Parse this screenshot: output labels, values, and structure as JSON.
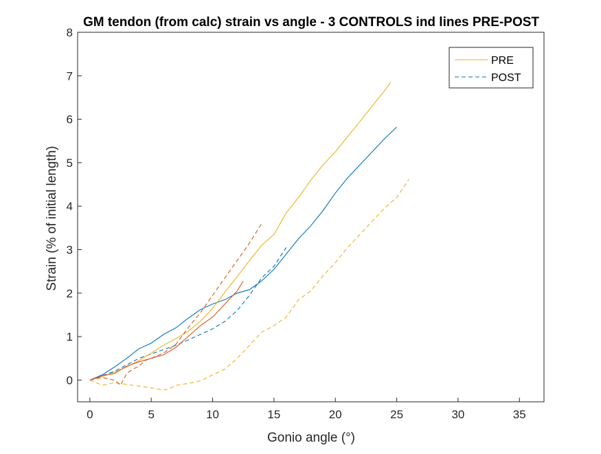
{
  "chart_data": {
    "type": "line",
    "title": "GM tendon (from calc) strain vs angle - 3 CONTROLS ind lines PRE-POST",
    "xlabel": "Gonio angle (°)",
    "ylabel": "Strain (% of initial length)",
    "xlim": [
      -1,
      37
    ],
    "ylim": [
      -0.5,
      8
    ],
    "xticks": [
      0,
      5,
      10,
      15,
      20,
      25,
      30,
      35
    ],
    "yticks": [
      0,
      1,
      2,
      3,
      4,
      5,
      6,
      7,
      8
    ],
    "grid": false,
    "legend": {
      "position": "top-right",
      "entries": [
        {
          "label": "PRE",
          "style": "solid",
          "color": "#EDB120"
        },
        {
          "label": "POST",
          "style": "dashed",
          "color": "#0072BD"
        }
      ]
    },
    "series": [
      {
        "color": "#0072BD",
        "style": "solid",
        "points": [
          [
            0,
            0
          ],
          [
            1,
            0.12
          ],
          [
            2,
            0.3
          ],
          [
            3,
            0.5
          ],
          [
            4,
            0.72
          ],
          [
            5,
            0.85
          ],
          [
            6,
            1.05
          ],
          [
            7,
            1.2
          ],
          [
            8,
            1.42
          ],
          [
            9,
            1.62
          ],
          [
            10,
            1.75
          ],
          [
            11,
            1.85
          ],
          [
            12,
            2.0
          ],
          [
            13,
            2.08
          ],
          [
            14,
            2.28
          ],
          [
            15,
            2.55
          ],
          [
            16,
            2.9
          ],
          [
            17,
            3.25
          ],
          [
            18,
            3.55
          ],
          [
            19,
            3.9
          ],
          [
            20,
            4.3
          ],
          [
            21,
            4.65
          ],
          [
            22,
            4.95
          ],
          [
            23,
            5.25
          ],
          [
            24,
            5.55
          ],
          [
            25,
            5.82
          ]
        ]
      },
      {
        "color": "#0072BD",
        "style": "dashed",
        "points": [
          [
            0,
            0
          ],
          [
            1,
            0.1
          ],
          [
            2,
            0.2
          ],
          [
            3,
            0.35
          ],
          [
            4,
            0.5
          ],
          [
            5,
            0.6
          ],
          [
            6,
            0.7
          ],
          [
            7,
            0.8
          ],
          [
            8,
            0.92
          ],
          [
            9,
            1.05
          ],
          [
            10,
            1.18
          ],
          [
            11,
            1.35
          ],
          [
            12,
            1.6
          ],
          [
            13,
            1.95
          ],
          [
            14,
            2.35
          ],
          [
            15,
            2.62
          ],
          [
            16,
            3.05
          ]
        ]
      },
      {
        "color": "#EDB120",
        "style": "solid",
        "points": [
          [
            0,
            0
          ],
          [
            1,
            0.08
          ],
          [
            2,
            0.18
          ],
          [
            3,
            0.3
          ],
          [
            4,
            0.45
          ],
          [
            5,
            0.62
          ],
          [
            6,
            0.8
          ],
          [
            7,
            0.95
          ],
          [
            8,
            1.12
          ],
          [
            9,
            1.35
          ],
          [
            10,
            1.65
          ],
          [
            11,
            2.02
          ],
          [
            12,
            2.38
          ],
          [
            13,
            2.75
          ],
          [
            14,
            3.1
          ],
          [
            15,
            3.35
          ],
          [
            16,
            3.85
          ],
          [
            17,
            4.2
          ],
          [
            18,
            4.6
          ],
          [
            19,
            4.95
          ],
          [
            20,
            5.25
          ],
          [
            21,
            5.6
          ],
          [
            22,
            5.95
          ],
          [
            23,
            6.3
          ],
          [
            24,
            6.65
          ],
          [
            24.5,
            6.85
          ]
        ]
      },
      {
        "color": "#EDB120",
        "style": "dashed",
        "points": [
          [
            0,
            0
          ],
          [
            1,
            -0.12
          ],
          [
            2,
            -0.06
          ],
          [
            3,
            -0.1
          ],
          [
            4,
            -0.14
          ],
          [
            5,
            -0.18
          ],
          [
            6,
            -0.23
          ],
          [
            6.5,
            -0.2
          ],
          [
            7,
            -0.12
          ],
          [
            8,
            -0.08
          ],
          [
            9,
            -0.02
          ],
          [
            10,
            0.12
          ],
          [
            11,
            0.25
          ],
          [
            12,
            0.5
          ],
          [
            13,
            0.8
          ],
          [
            14,
            1.1
          ],
          [
            15,
            1.25
          ],
          [
            16,
            1.45
          ],
          [
            17,
            1.85
          ],
          [
            18,
            2.05
          ],
          [
            19,
            2.4
          ],
          [
            20,
            2.7
          ],
          [
            21,
            3.05
          ],
          [
            22,
            3.35
          ],
          [
            23,
            3.65
          ],
          [
            24,
            3.95
          ],
          [
            25,
            4.2
          ],
          [
            26,
            4.62
          ]
        ]
      },
      {
        "color": "#D95319",
        "style": "solid",
        "points": [
          [
            0,
            0
          ],
          [
            1,
            0.1
          ],
          [
            2,
            0.15
          ],
          [
            3,
            0.32
          ],
          [
            4,
            0.42
          ],
          [
            5,
            0.5
          ],
          [
            6,
            0.58
          ],
          [
            7,
            0.75
          ],
          [
            8,
            1.0
          ],
          [
            9,
            1.25
          ],
          [
            10,
            1.45
          ],
          [
            11,
            1.75
          ],
          [
            12,
            2.05
          ],
          [
            12.5,
            2.28
          ]
        ]
      },
      {
        "color": "#D95319",
        "style": "dashed",
        "points": [
          [
            0,
            0
          ],
          [
            1,
            0.06
          ],
          [
            2,
            0.0
          ],
          [
            2.5,
            -0.12
          ],
          [
            3,
            0.15
          ],
          [
            3.5,
            0.25
          ],
          [
            4,
            0.32
          ],
          [
            4.5,
            0.45
          ],
          [
            5,
            0.5
          ],
          [
            6,
            0.62
          ],
          [
            7,
            0.82
          ],
          [
            8,
            1.2
          ],
          [
            9,
            1.55
          ],
          [
            10,
            1.95
          ],
          [
            11,
            2.35
          ],
          [
            12,
            2.75
          ],
          [
            13,
            3.15
          ],
          [
            14,
            3.6
          ]
        ]
      }
    ]
  }
}
